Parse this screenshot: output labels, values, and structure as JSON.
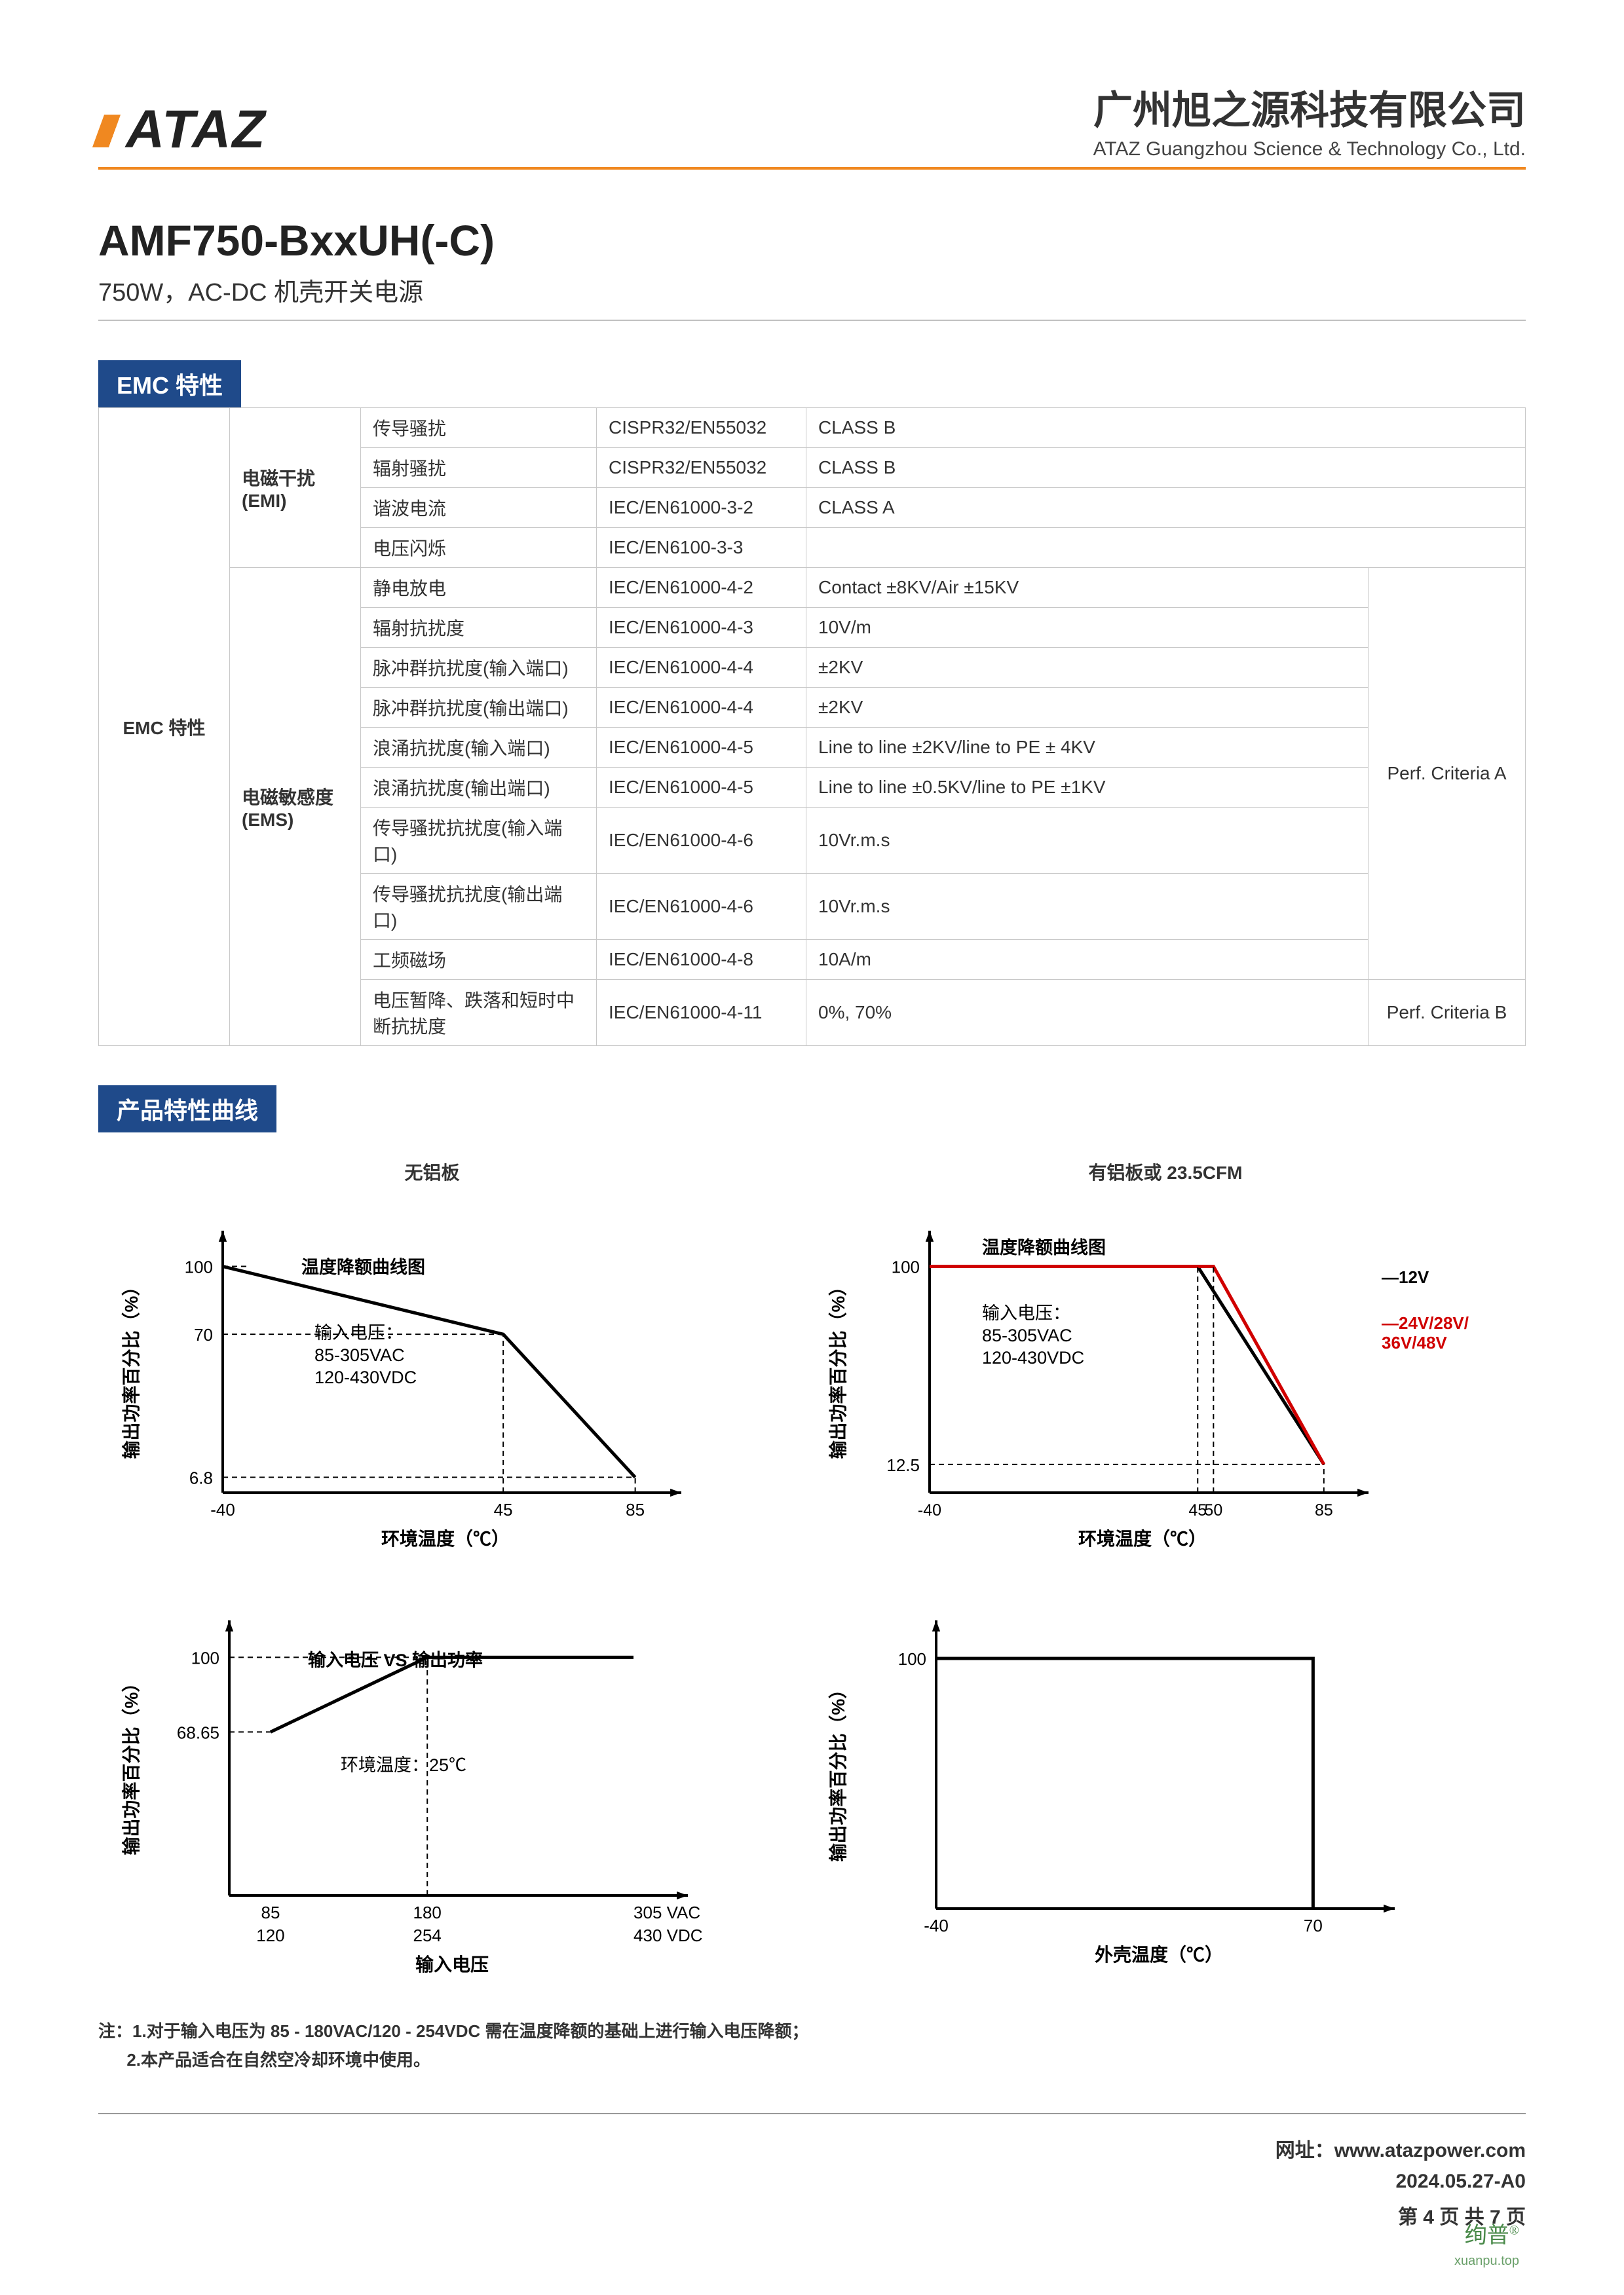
{
  "header": {
    "logo_text": "ATAZ",
    "company_cn": "广州旭之源科技有限公司",
    "company_en": "ATAZ Guangzhou Science & Technology Co., Ltd."
  },
  "product": {
    "title": "AMF750-BxxUH(-C)",
    "subtitle": "750W，AC-DC 机壳开关电源"
  },
  "sections": {
    "emc": "EMC 特性",
    "curves": "产品特性曲线"
  },
  "table": {
    "group": "EMC 特性",
    "emi_label": "电磁干扰\n(EMI)",
    "ems_label": "电磁敏感度\n(EMS)",
    "emi_rows": [
      {
        "label": "传导骚扰",
        "std": "CISPR32/EN55032",
        "val": "CLASS B"
      },
      {
        "label": "辐射骚扰",
        "std": "CISPR32/EN55032",
        "val": "CLASS B"
      },
      {
        "label": "谐波电流",
        "std": "IEC/EN61000-3-2",
        "val": "CLASS A"
      },
      {
        "label": "电压闪烁",
        "std": "IEC/EN6100-3-3",
        "val": ""
      }
    ],
    "ems_rows_a": [
      {
        "label": "静电放电",
        "std": "IEC/EN61000-4-2",
        "val": "Contact ±8KV/Air ±15KV"
      },
      {
        "label": "辐射抗扰度",
        "std": "IEC/EN61000-4-3",
        "val": "10V/m"
      },
      {
        "label": "脉冲群抗扰度(输入端口)",
        "std": "IEC/EN61000-4-4",
        "val": "±2KV"
      },
      {
        "label": "脉冲群抗扰度(输出端口)",
        "std": "IEC/EN61000-4-4",
        "val": "±2KV"
      },
      {
        "label": "浪涌抗扰度(输入端口)",
        "std": "IEC/EN61000-4-5",
        "val": "Line to line ±2KV/line to PE ± 4KV"
      },
      {
        "label": "浪涌抗扰度(输出端口)",
        "std": "IEC/EN61000-4-5",
        "val": "Line to line ±0.5KV/line to PE ±1KV"
      },
      {
        "label": "传导骚扰抗扰度(输入端口)",
        "std": "IEC/EN61000-4-6",
        "val": "10Vr.m.s"
      },
      {
        "label": "传导骚扰抗扰度(输出端口)",
        "std": "IEC/EN61000-4-6",
        "val": "10Vr.m.s"
      },
      {
        "label": "工频磁场",
        "std": "IEC/EN61000-4-8",
        "val": "10A/m"
      }
    ],
    "ems_rows_b": [
      {
        "label": "电压暂降、跌落和短时中断抗扰度",
        "std": "IEC/EN61000-4-11",
        "val": "0%, 70%"
      }
    ],
    "crit_a": "Perf. Criteria A",
    "crit_b": "Perf. Criteria B"
  },
  "charts": {
    "chart1": {
      "top_title": "无铝板",
      "title": "温度降额曲线图",
      "ylabel": "输出功率百分比（%）",
      "xlabel": "环境温度（℃）",
      "inbox": "输入电压：\n85-305VAC\n120-430VDC",
      "x_ticks": [
        "-40",
        "45",
        "85"
      ],
      "y_ticks": [
        "6.8",
        "70",
        "100"
      ],
      "line_color": "#000000",
      "points": [
        [
          -40,
          100
        ],
        [
          45,
          70
        ],
        [
          85,
          6.8
        ]
      ],
      "xlim": [
        -40,
        95
      ],
      "ylim": [
        0,
        110
      ]
    },
    "chart2": {
      "top_title": "有铝板或 23.5CFM",
      "title": "温度降额曲线图",
      "ylabel": "输出功率百分比（%）",
      "xlabel": "环境温度（℃）",
      "inbox": "输入电压：\n85-305VAC\n120-430VDC",
      "x_ticks": [
        "-40",
        "45",
        "50",
        "85"
      ],
      "y_ticks": [
        "12.5",
        "100"
      ],
      "series": [
        {
          "name": "12V",
          "color": "#000000",
          "points": [
            [
              -40,
              100
            ],
            [
              45,
              100
            ],
            [
              85,
              12.5
            ]
          ]
        },
        {
          "name": "24V/28V/36V/48V",
          "color": "#d00000",
          "points": [
            [
              -40,
              100
            ],
            [
              50,
              100
            ],
            [
              85,
              12.5
            ]
          ]
        }
      ],
      "legend": [
        {
          "label": "—12V",
          "color": "#000000"
        },
        {
          "label": "—24V/28V/\n36V/48V",
          "color": "#d00000"
        }
      ],
      "xlim": [
        -40,
        95
      ],
      "ylim": [
        0,
        110
      ]
    },
    "chart3": {
      "title": "输入电压 VS 输出功率",
      "ylabel": "输出功率百分比（%）",
      "xlabel": "输入电压",
      "inbox": "环境温度：25℃",
      "x_ticks_top": [
        "85",
        "180",
        "305 VAC"
      ],
      "x_ticks_bot": [
        "120",
        "254",
        "430 VDC"
      ],
      "y_ticks": [
        "68.65",
        "100"
      ],
      "line_color": "#000000",
      "points": [
        [
          85,
          68.65
        ],
        [
          180,
          100
        ],
        [
          305,
          100
        ]
      ],
      "xlim": [
        60,
        330
      ],
      "ylim": [
        0,
        110
      ]
    },
    "chart4": {
      "ylabel": "输出功率百分比（%）",
      "xlabel": "外壳温度（℃）",
      "x_ticks": [
        "-40",
        "70"
      ],
      "y_ticks": [
        "100"
      ],
      "line_color": "#000000",
      "points": [
        [
          -40,
          100
        ],
        [
          70,
          100
        ],
        [
          70,
          0
        ]
      ],
      "xlim": [
        -40,
        90
      ],
      "ylim": [
        0,
        110
      ]
    }
  },
  "notes": {
    "prefix": "注：",
    "n1": "1.对于输入电压为 85 - 180VAC/120 - 254VDC 需在温度降额的基础上进行输入电压降额；",
    "n2": "2.本产品适合在自然空冷却环境中使用。"
  },
  "footer": {
    "url_label": "网址：",
    "url": "www.atazpower.com",
    "date": "2024.05.27-A0",
    "page": "第 4 页 共 7 页"
  },
  "watermark": {
    "main": "绚普",
    "reg": "®",
    "sub": "xuanpu.top"
  },
  "colors": {
    "accent": "#f08820",
    "section_bg": "#1f4a8a",
    "border": "#c8c8c8",
    "red": "#d00000"
  }
}
